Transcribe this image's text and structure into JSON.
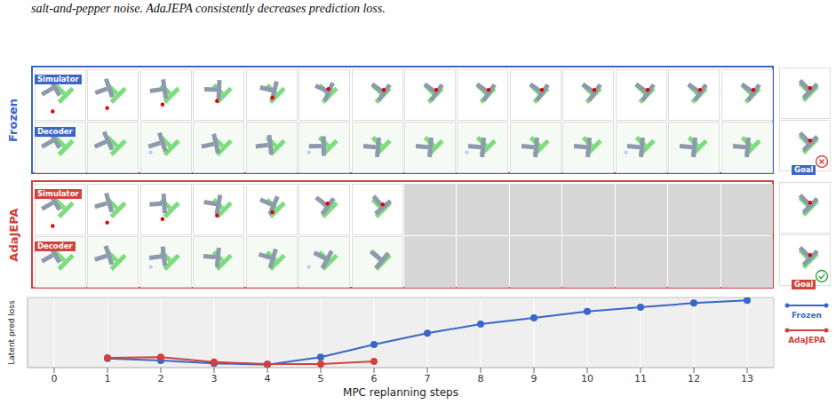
{
  "caption": "salt-and-pepper noise. AdaJEPA consistently decreases prediction loss.",
  "columns": 14,
  "goal_label": "Goal",
  "panels": [
    {
      "name": "Frozen",
      "color": "#3a66c9",
      "rows": [
        "Simulator",
        "Decoder"
      ],
      "frames": 14,
      "goal_reached": false
    },
    {
      "name": "AdaJEPA",
      "color": "#d3413b",
      "rows": [
        "Simulator",
        "Decoder"
      ],
      "frames": 7,
      "goal_reached": true
    }
  ],
  "chart_data": {
    "type": "line",
    "x": [
      0,
      1,
      2,
      3,
      4,
      5,
      6,
      7,
      8,
      9,
      10,
      11,
      12,
      13
    ],
    "xlim": [
      -0.5,
      13.5
    ],
    "xticks": [
      0,
      1,
      2,
      3,
      4,
      5,
      6,
      7,
      8,
      9,
      10,
      11,
      12,
      13
    ],
    "ylim": [
      0,
      1
    ],
    "yticks": [],
    "tick_labels": "x",
    "grid": true,
    "legend": "right",
    "x_label": "MPC replanning steps",
    "y_label": "Latent pred loss",
    "series": [
      {
        "name": "Frozen",
        "color": "#3a66c9",
        "marker": "circle",
        "values": [
          null,
          0.13,
          0.1,
          0.06,
          0.04,
          0.15,
          0.33,
          0.49,
          0.62,
          0.71,
          0.8,
          0.86,
          0.92,
          0.96
        ]
      },
      {
        "name": "AdaJEPA",
        "color": "#d3413b",
        "marker": "circle",
        "values": [
          null,
          0.14,
          0.15,
          0.08,
          0.05,
          0.05,
          0.09,
          null,
          null,
          null,
          null,
          null,
          null,
          null
        ]
      }
    ]
  }
}
